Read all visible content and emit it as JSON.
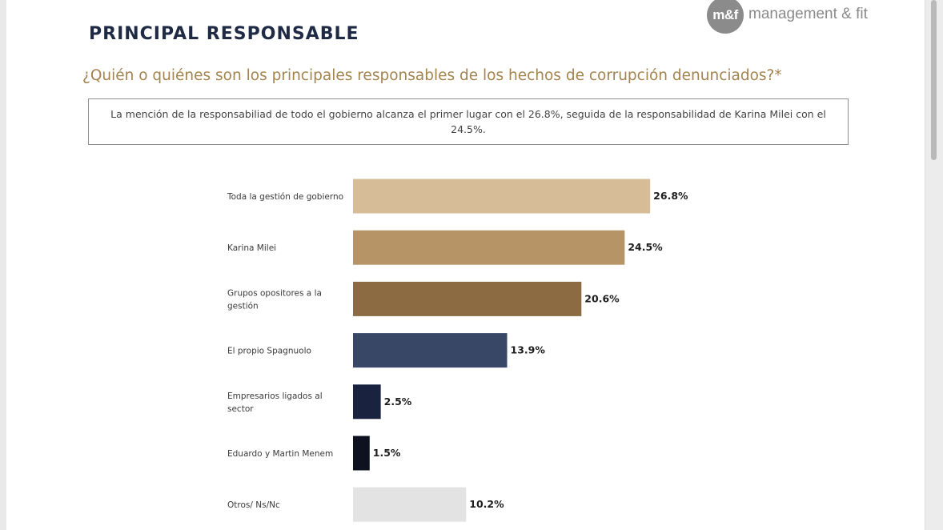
{
  "header": {
    "title": "PRINCIPAL RESPONSABLE",
    "question": "¿Quién o quiénes son los principales responsables de los hechos de corrupción denunciados?*",
    "summary": "La mención de la responsabiliad de todo el gobierno alcanza el primer lugar con el 26.8%, seguida de la responsabilidad de Karina Milei con el 24.5%."
  },
  "logo": {
    "mark": "m&f",
    "text": "management & fit"
  },
  "chart_data": {
    "type": "bar",
    "orientation": "horizontal",
    "title": "PRINCIPAL RESPONSABLE",
    "xlabel": "",
    "ylabel": "",
    "xlim": [
      0,
      30
    ],
    "categories": [
      [
        "Toda la gestión de gobierno"
      ],
      [
        "Karina Milei"
      ],
      [
        "Grupos opositores a la",
        "gestión"
      ],
      [
        "El propio Spagnuolo"
      ],
      [
        "Empresarios ligados al",
        "sector"
      ],
      [
        "Eduardo y Martin Menem"
      ],
      [
        "Otros/ Ns/Nc"
      ]
    ],
    "values": [
      26.8,
      24.5,
      20.6,
      13.9,
      2.5,
      1.5,
      10.2
    ],
    "value_labels": [
      "26.8%",
      "24.5%",
      "20.6%",
      "13.9%",
      "2.5%",
      "1.5%",
      "10.2%"
    ],
    "colors": [
      "#d6bd98",
      "#b69466",
      "#8c6b42",
      "#384766",
      "#192340",
      "#0d1120",
      "#e3e3e3"
    ]
  }
}
